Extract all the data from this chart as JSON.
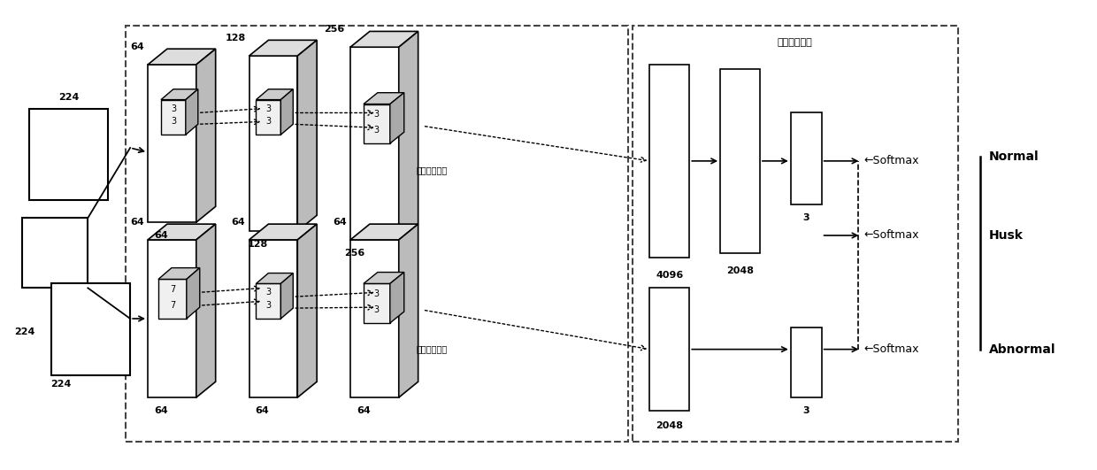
{
  "bg_color": "#ffffff",
  "line_color": "#000000",
  "fig_w": 12.4,
  "fig_h": 5.31,
  "dpi": 100,
  "branch1_label": "第一支路模型",
  "branch2_label": "第二支路模型",
  "fusion_label": "融合分类模型",
  "classes": [
    "Normal",
    "Husk",
    "Abnormal"
  ]
}
